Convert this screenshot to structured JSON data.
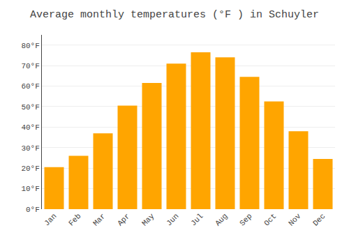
{
  "chart_data": {
    "type": "bar",
    "title": "Average monthly temperatures (°F ) in Schuyler",
    "categories": [
      "Jan",
      "Feb",
      "Mar",
      "Apr",
      "May",
      "Jun",
      "Jul",
      "Aug",
      "Sep",
      "Oct",
      "Nov",
      "Dec"
    ],
    "values": [
      20.5,
      26.0,
      37.0,
      50.5,
      61.5,
      71.0,
      76.5,
      74.0,
      64.5,
      52.5,
      38.0,
      24.5
    ],
    "color": "#FFA500",
    "ylim": [
      0,
      85
    ],
    "yticks": [
      {
        "value": 0,
        "label": "0°F"
      },
      {
        "value": 10,
        "label": "10°F"
      },
      {
        "value": 20,
        "label": "20°F"
      },
      {
        "value": 30,
        "label": "30°F"
      },
      {
        "value": 40,
        "label": "40°F"
      },
      {
        "value": 50,
        "label": "50°F"
      },
      {
        "value": 60,
        "label": "60°F"
      },
      {
        "value": 70,
        "label": "70°F"
      },
      {
        "value": 80,
        "label": "80°F"
      }
    ],
    "grid": true
  }
}
